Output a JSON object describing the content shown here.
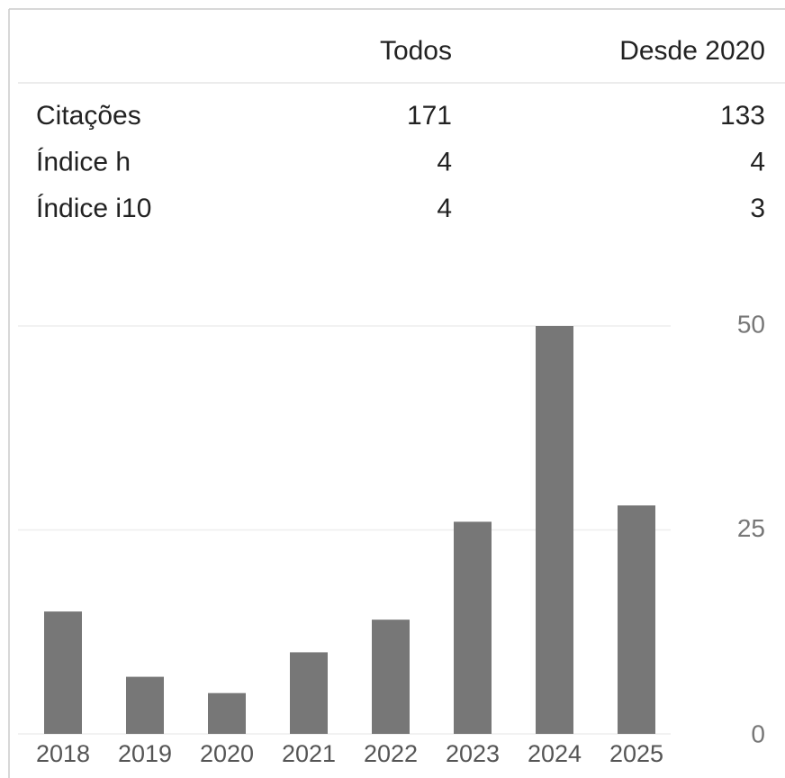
{
  "table": {
    "columns": [
      "Todos",
      "Desde 2020"
    ],
    "rows": [
      [
        "Citações",
        171,
        133
      ],
      [
        "Índice h",
        4,
        4
      ],
      [
        "Índice i10",
        4,
        3
      ]
    ]
  },
  "chart_data": {
    "type": "bar",
    "categories": [
      "2018",
      "2019",
      "2020",
      "2021",
      "2022",
      "2023",
      "2024",
      "2025"
    ],
    "values": [
      15,
      7,
      5,
      10,
      14,
      26,
      50,
      28
    ],
    "color": "#777777",
    "ylim": [
      0,
      50
    ],
    "yticks": [
      0,
      25,
      50
    ],
    "grid": true
  }
}
